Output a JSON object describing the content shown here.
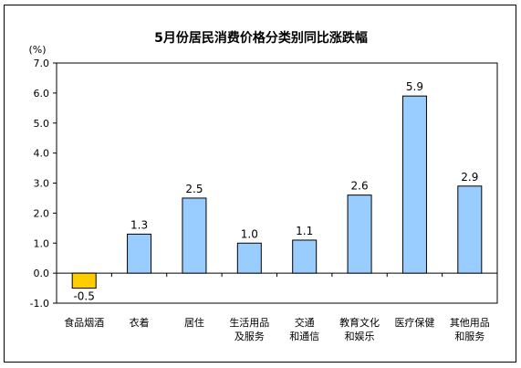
{
  "chart_data": {
    "type": "bar",
    "title": "5月份居民消费价格分类别同比涨跌幅",
    "unit_label": "(%)",
    "ylim": [
      -1.0,
      7.0
    ],
    "yticks": [
      "-1.0",
      "0.0",
      "1.0",
      "2.0",
      "3.0",
      "4.0",
      "5.0",
      "6.0",
      "7.0"
    ],
    "categories": [
      [
        "食品烟酒"
      ],
      [
        "衣着"
      ],
      [
        "居住"
      ],
      [
        "生活用品",
        "及服务"
      ],
      [
        "交通",
        "和通信"
      ],
      [
        "教育文化",
        "和娱乐"
      ],
      [
        "医疗保健"
      ],
      [
        "其他用品",
        "和服务"
      ]
    ],
    "values": [
      -0.5,
      1.3,
      2.5,
      1.0,
      1.1,
      2.6,
      5.9,
      2.9
    ],
    "value_labels": [
      "-0.5",
      "1.3",
      "2.5",
      "1.0",
      "1.1",
      "2.6",
      "5.9",
      "2.9"
    ],
    "grid": false,
    "colors": {
      "positive_bar": "#99ccff",
      "negative_bar": "#ffcc00",
      "bar_border": "#000000"
    }
  }
}
